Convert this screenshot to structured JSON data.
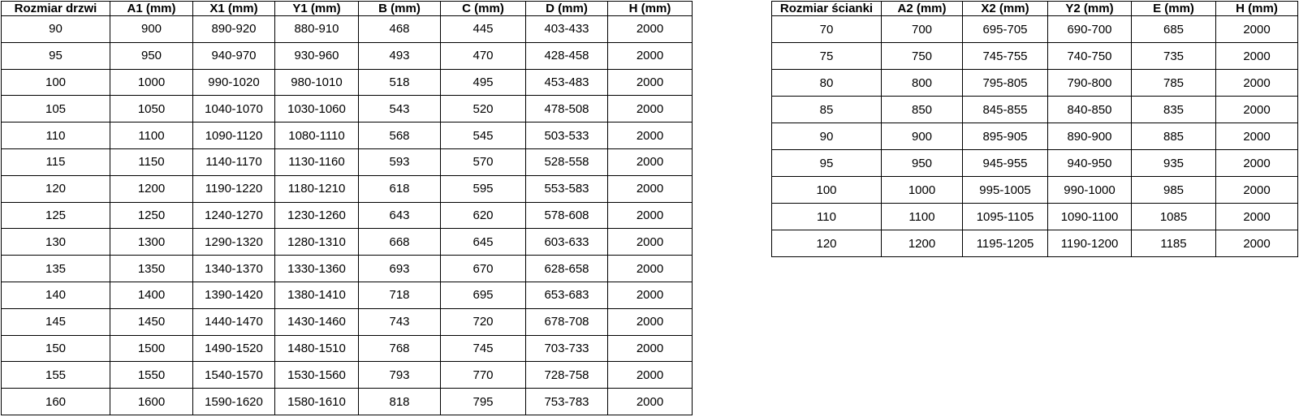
{
  "page": {
    "background_color": "#ffffff",
    "border_color": "#000000",
    "text_color": "#000000"
  },
  "door_table": {
    "headers": [
      "Rozmiar drzwi",
      "A1 (mm)",
      "X1 (mm)",
      "Y1 (mm)",
      "B (mm)",
      "C (mm)",
      "D (mm)",
      "H (mm)"
    ],
    "rows": [
      [
        "90",
        "900",
        "890-920",
        "880-910",
        "468",
        "445",
        "403-433",
        "2000"
      ],
      [
        "95",
        "950",
        "940-970",
        "930-960",
        "493",
        "470",
        "428-458",
        "2000"
      ],
      [
        "100",
        "1000",
        "990-1020",
        "980-1010",
        "518",
        "495",
        "453-483",
        "2000"
      ],
      [
        "105",
        "1050",
        "1040-1070",
        "1030-1060",
        "543",
        "520",
        "478-508",
        "2000"
      ],
      [
        "110",
        "1100",
        "1090-1120",
        "1080-1110",
        "568",
        "545",
        "503-533",
        "2000"
      ],
      [
        "115",
        "1150",
        "1140-1170",
        "1130-1160",
        "593",
        "570",
        "528-558",
        "2000"
      ],
      [
        "120",
        "1200",
        "1190-1220",
        "1180-1210",
        "618",
        "595",
        "553-583",
        "2000"
      ],
      [
        "125",
        "1250",
        "1240-1270",
        "1230-1260",
        "643",
        "620",
        "578-608",
        "2000"
      ],
      [
        "130",
        "1300",
        "1290-1320",
        "1280-1310",
        "668",
        "645",
        "603-633",
        "2000"
      ],
      [
        "135",
        "1350",
        "1340-1370",
        "1330-1360",
        "693",
        "670",
        "628-658",
        "2000"
      ],
      [
        "140",
        "1400",
        "1390-1420",
        "1380-1410",
        "718",
        "695",
        "653-683",
        "2000"
      ],
      [
        "145",
        "1450",
        "1440-1470",
        "1430-1460",
        "743",
        "720",
        "678-708",
        "2000"
      ],
      [
        "150",
        "1500",
        "1490-1520",
        "1480-1510",
        "768",
        "745",
        "703-733",
        "2000"
      ],
      [
        "155",
        "1550",
        "1540-1570",
        "1530-1560",
        "793",
        "770",
        "728-758",
        "2000"
      ],
      [
        "160",
        "1600",
        "1590-1620",
        "1580-1610",
        "818",
        "795",
        "753-783",
        "2000"
      ]
    ]
  },
  "panel_table": {
    "headers": [
      "Rozmiar ścianki",
      "A2 (mm)",
      "X2 (mm)",
      "Y2 (mm)",
      "E (mm)",
      "H (mm)"
    ],
    "rows": [
      [
        "70",
        "700",
        "695-705",
        "690-700",
        "685",
        "2000"
      ],
      [
        "75",
        "750",
        "745-755",
        "740-750",
        "735",
        "2000"
      ],
      [
        "80",
        "800",
        "795-805",
        "790-800",
        "785",
        "2000"
      ],
      [
        "85",
        "850",
        "845-855",
        "840-850",
        "835",
        "2000"
      ],
      [
        "90",
        "900",
        "895-905",
        "890-900",
        "885",
        "2000"
      ],
      [
        "95",
        "950",
        "945-955",
        "940-950",
        "935",
        "2000"
      ],
      [
        "100",
        "1000",
        "995-1005",
        "990-1000",
        "985",
        "2000"
      ],
      [
        "110",
        "1100",
        "1095-1105",
        "1090-1100",
        "1085",
        "2000"
      ],
      [
        "120",
        "1200",
        "1195-1205",
        "1190-1200",
        "1185",
        "2000"
      ]
    ]
  }
}
